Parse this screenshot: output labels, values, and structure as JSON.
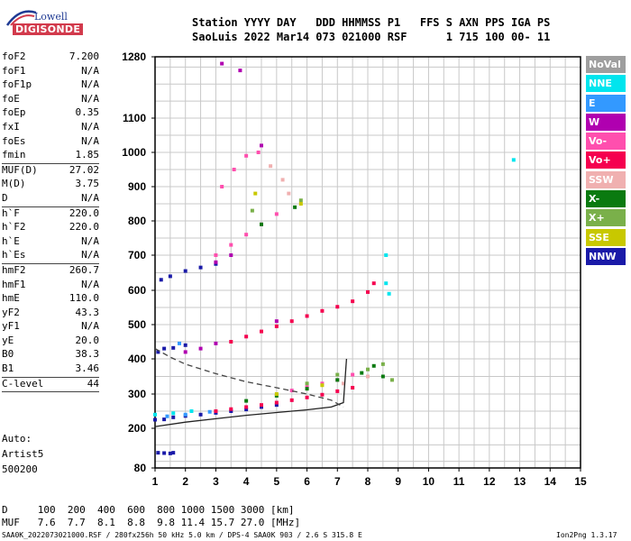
{
  "logo": {
    "top": "Lowell",
    "bottom": "DIGISONDE"
  },
  "header": {
    "line1": "Station YYYY DAY   DDD HHMMSS P1   FFS S AXN PPS IGA PS",
    "line2": "SaoLuis 2022 Mar14 073 021000 RSF      1 715 100 00- 11"
  },
  "params_a": [
    {
      "k": "foF2",
      "v": "7.200"
    },
    {
      "k": "foF1",
      "v": "N/A"
    },
    {
      "k": "foF1p",
      "v": "N/A"
    },
    {
      "k": "foE",
      "v": "N/A"
    },
    {
      "k": "foEp",
      "v": "0.35"
    },
    {
      "k": "fxI",
      "v": "N/A"
    },
    {
      "k": "foEs",
      "v": "N/A"
    },
    {
      "k": "fmin",
      "v": "1.85"
    }
  ],
  "params_b": [
    {
      "k": "MUF(D)",
      "v": "27.02"
    },
    {
      "k": "M(D)",
      "v": "3.75"
    },
    {
      "k": "D",
      "v": "N/A"
    }
  ],
  "params_c": [
    {
      "k": "h`F",
      "v": "220.0"
    },
    {
      "k": "h`F2",
      "v": "220.0"
    },
    {
      "k": "h`E",
      "v": "N/A"
    },
    {
      "k": "h`Es",
      "v": "N/A"
    }
  ],
  "params_d": [
    {
      "k": "hmF2",
      "v": "260.7"
    },
    {
      "k": "hmF1",
      "v": "N/A"
    },
    {
      "k": "hmE",
      "v": "110.0"
    },
    {
      "k": "yF2",
      "v": "43.3"
    },
    {
      "k": "yF1",
      "v": "N/A"
    },
    {
      "k": "yE",
      "v": "20.0"
    },
    {
      "k": "B0",
      "v": "38.3"
    },
    {
      "k": "B1",
      "v": "3.46"
    }
  ],
  "params_e": [
    {
      "k": "C-level",
      "v": "44"
    }
  ],
  "auto": {
    "l1": "Auto:",
    "l2": "Artist5",
    "l3": "500200"
  },
  "legend": [
    {
      "label": "NoVal",
      "color": "#9e9e9e"
    },
    {
      "label": "NNE",
      "color": "#00e5ee"
    },
    {
      "label": "E",
      "color": "#3399ff"
    },
    {
      "label": "W",
      "color": "#b000b0"
    },
    {
      "label": "Vo-",
      "color": "#ff4fae"
    },
    {
      "label": "Vo+",
      "color": "#f5004f"
    },
    {
      "label": "SSW",
      "color": "#f0b0b0"
    },
    {
      "label": "X-",
      "color": "#0a7a10"
    },
    {
      "label": "X+",
      "color": "#7ab04a"
    },
    {
      "label": "SSE",
      "color": "#c8c800"
    },
    {
      "label": "NNW",
      "color": "#1a1aa8"
    }
  ],
  "muf": {
    "d_row": "D     100  200  400  600  800 1000 1500 3000 [km]",
    "m_row": "MUF   7.6  7.7  8.1  8.8  9.8 11.4 15.7 27.0 [MHz]"
  },
  "footer": {
    "left": "SAA0K_2022073021000.RSF / 280fx256h 50 kHz 5.0 km / DPS-4 SAA0K 903 / 2.6 S 315.8 E",
    "right": "Ion2Png 1.3.17"
  },
  "chart_data": {
    "type": "scatter",
    "title": "",
    "xlabel": "",
    "ylabel": "",
    "xlim": [
      1,
      15
    ],
    "ylim": [
      80,
      1280
    ],
    "x_ticks": [
      1,
      2,
      3,
      4,
      5,
      6,
      7,
      8,
      9,
      10,
      11,
      12,
      13,
      14,
      15
    ],
    "y_ticks": [
      80,
      200,
      300,
      400,
      500,
      600,
      700,
      800,
      900,
      1000,
      1100,
      1280
    ],
    "grid": true,
    "series": [
      {
        "name": "NNW",
        "color": "#1a1aa8",
        "points": [
          [
            1.0,
            225
          ],
          [
            1.3,
            226
          ],
          [
            1.6,
            232
          ],
          [
            2.0,
            236
          ],
          [
            2.5,
            240
          ],
          [
            3.0,
            245
          ],
          [
            3.5,
            250
          ],
          [
            4.0,
            255
          ],
          [
            4.5,
            262
          ],
          [
            5.0,
            268
          ],
          [
            1.1,
            420
          ],
          [
            1.3,
            430
          ],
          [
            1.6,
            432
          ],
          [
            2.0,
            440
          ],
          [
            1.2,
            630
          ],
          [
            1.5,
            640
          ],
          [
            2.0,
            655
          ],
          [
            2.5,
            665
          ],
          [
            3.0,
            675
          ],
          [
            1.1,
            126
          ],
          [
            1.3,
            125
          ],
          [
            1.5,
            124
          ],
          [
            1.6,
            126
          ]
        ]
      },
      {
        "name": "Vo+",
        "color": "#f5004f",
        "points": [
          [
            3.0,
            250
          ],
          [
            3.5,
            256
          ],
          [
            4.0,
            262
          ],
          [
            4.5,
            268
          ],
          [
            5.0,
            275
          ],
          [
            5.5,
            282
          ],
          [
            6.0,
            290
          ],
          [
            6.5,
            298
          ],
          [
            7.0,
            308
          ],
          [
            7.5,
            318
          ],
          [
            3.5,
            450
          ],
          [
            4.0,
            465
          ],
          [
            4.5,
            480
          ],
          [
            5.0,
            495
          ],
          [
            5.5,
            510
          ],
          [
            6.0,
            525
          ],
          [
            6.5,
            540
          ],
          [
            7.0,
            552
          ],
          [
            7.5,
            568
          ],
          [
            8.0,
            595
          ],
          [
            8.2,
            620
          ]
        ]
      },
      {
        "name": "Vo-",
        "color": "#ff4fae",
        "points": [
          [
            5.5,
            310
          ],
          [
            6.0,
            320
          ],
          [
            6.5,
            330
          ],
          [
            7.0,
            340
          ],
          [
            7.5,
            355
          ],
          [
            3.0,
            700
          ],
          [
            3.5,
            730
          ],
          [
            4.0,
            760
          ],
          [
            4.5,
            790
          ],
          [
            5.0,
            820
          ],
          [
            3.2,
            900
          ],
          [
            3.6,
            950
          ],
          [
            4.0,
            990
          ],
          [
            4.4,
            1000
          ]
        ]
      },
      {
        "name": "X-",
        "color": "#0a7a10",
        "points": [
          [
            4.0,
            280
          ],
          [
            5.0,
            295
          ],
          [
            6.0,
            315
          ],
          [
            7.0,
            340
          ],
          [
            7.8,
            360
          ],
          [
            8.2,
            380
          ],
          [
            8.5,
            350
          ],
          [
            4.5,
            790
          ],
          [
            5.6,
            840
          ]
        ]
      },
      {
        "name": "X+",
        "color": "#7ab04a",
        "points": [
          [
            6.0,
            330
          ],
          [
            7.0,
            355
          ],
          [
            8.0,
            370
          ],
          [
            8.5,
            385
          ],
          [
            8.8,
            340
          ],
          [
            4.2,
            830
          ],
          [
            5.8,
            860
          ]
        ]
      },
      {
        "name": "W",
        "color": "#b000b0",
        "points": [
          [
            2.0,
            420
          ],
          [
            2.5,
            430
          ],
          [
            3.0,
            445
          ],
          [
            5.0,
            510
          ],
          [
            3.0,
            680
          ],
          [
            3.5,
            700
          ],
          [
            4.5,
            1020
          ],
          [
            3.2,
            1260
          ],
          [
            3.8,
            1240
          ]
        ]
      },
      {
        "name": "NNE",
        "color": "#00e5ee",
        "points": [
          [
            1.0,
            240
          ],
          [
            1.6,
            244
          ],
          [
            2.2,
            250
          ],
          [
            8.6,
            700
          ],
          [
            8.6,
            620
          ],
          [
            8.7,
            590
          ],
          [
            12.8,
            978
          ]
        ]
      },
      {
        "name": "E",
        "color": "#3399ff",
        "points": [
          [
            1.4,
            235
          ],
          [
            2.0,
            240
          ],
          [
            2.8,
            248
          ],
          [
            1.8,
            445
          ]
        ]
      },
      {
        "name": "SSW",
        "color": "#f0b0b0",
        "points": [
          [
            7.2,
            330
          ],
          [
            8.0,
            350
          ],
          [
            4.8,
            960
          ],
          [
            5.2,
            920
          ],
          [
            5.4,
            880
          ]
        ]
      },
      {
        "name": "SSE",
        "color": "#c8c800",
        "points": [
          [
            5.0,
            300
          ],
          [
            6.5,
            325
          ],
          [
            5.8,
            850
          ],
          [
            4.3,
            880
          ]
        ]
      }
    ],
    "trace_lines": [
      {
        "name": "virtual_height_trace",
        "points": [
          [
            1.0,
            205
          ],
          [
            2.0,
            218
          ],
          [
            3.0,
            228
          ],
          [
            4.0,
            238
          ],
          [
            5.0,
            246
          ],
          [
            6.0,
            254
          ],
          [
            6.8,
            262
          ],
          [
            7.2,
            275
          ],
          [
            7.3,
            400
          ]
        ]
      },
      {
        "name": "true_height_profile",
        "dashed": true,
        "points": [
          [
            1.0,
            430
          ],
          [
            1.5,
            405
          ],
          [
            2.0,
            385
          ],
          [
            3.0,
            358
          ],
          [
            4.0,
            335
          ],
          [
            5.0,
            318
          ],
          [
            6.0,
            300
          ],
          [
            6.8,
            282
          ],
          [
            7.2,
            262
          ]
        ]
      }
    ]
  }
}
